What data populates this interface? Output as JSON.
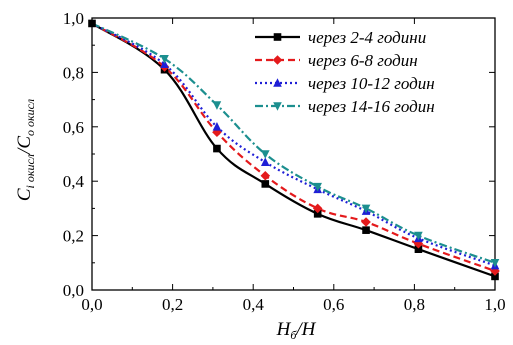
{
  "chart_data": {
    "type": "line",
    "xlim": [
      0.0,
      1.0
    ],
    "ylim": [
      0.0,
      1.0
    ],
    "x_ticks": [
      "0,0",
      "0,2",
      "0,4",
      "0,6",
      "0,8",
      "1,0"
    ],
    "y_ticks": [
      "0,0",
      "0,2",
      "0,4",
      "0,6",
      "0,8",
      "1,0"
    ],
    "xlabel": {
      "main": "H",
      "sub": "б",
      "rest": "/H"
    },
    "ylabel": {
      "c1": "C",
      "sub1": "і окисл",
      "mid": "/C",
      "sub2": "о окисл"
    },
    "grid": false,
    "legend_position": "top-right",
    "series": [
      {
        "name": "через 2-4 години",
        "color": "#000000",
        "dash": "solid",
        "marker": "square",
        "x": [
          0.0,
          0.18,
          0.31,
          0.43,
          0.56,
          0.68,
          0.81,
          1.0
        ],
        "y": [
          0.98,
          0.81,
          0.52,
          0.39,
          0.28,
          0.22,
          0.15,
          0.05
        ]
      },
      {
        "name": "через 6-8 годин",
        "color": "#e41a1c",
        "dash": "dashed",
        "marker": "diamond",
        "x": [
          0.0,
          0.18,
          0.31,
          0.43,
          0.56,
          0.68,
          0.81,
          1.0
        ],
        "y": [
          0.98,
          0.82,
          0.58,
          0.42,
          0.3,
          0.25,
          0.17,
          0.07
        ]
      },
      {
        "name": "через 10-12 годин",
        "color": "#1f1fd6",
        "dash": "dotted",
        "marker": "triangle-up",
        "x": [
          0.0,
          0.18,
          0.31,
          0.43,
          0.56,
          0.68,
          0.81,
          1.0
        ],
        "y": [
          0.98,
          0.83,
          0.6,
          0.47,
          0.37,
          0.29,
          0.19,
          0.09
        ]
      },
      {
        "name": "через 14-16 годин",
        "color": "#1c8f8f",
        "dash": "dashdot",
        "marker": "triangle-down",
        "x": [
          0.0,
          0.18,
          0.31,
          0.43,
          0.56,
          0.68,
          0.81,
          1.0
        ],
        "y": [
          0.98,
          0.85,
          0.68,
          0.5,
          0.38,
          0.3,
          0.2,
          0.1
        ]
      }
    ]
  }
}
